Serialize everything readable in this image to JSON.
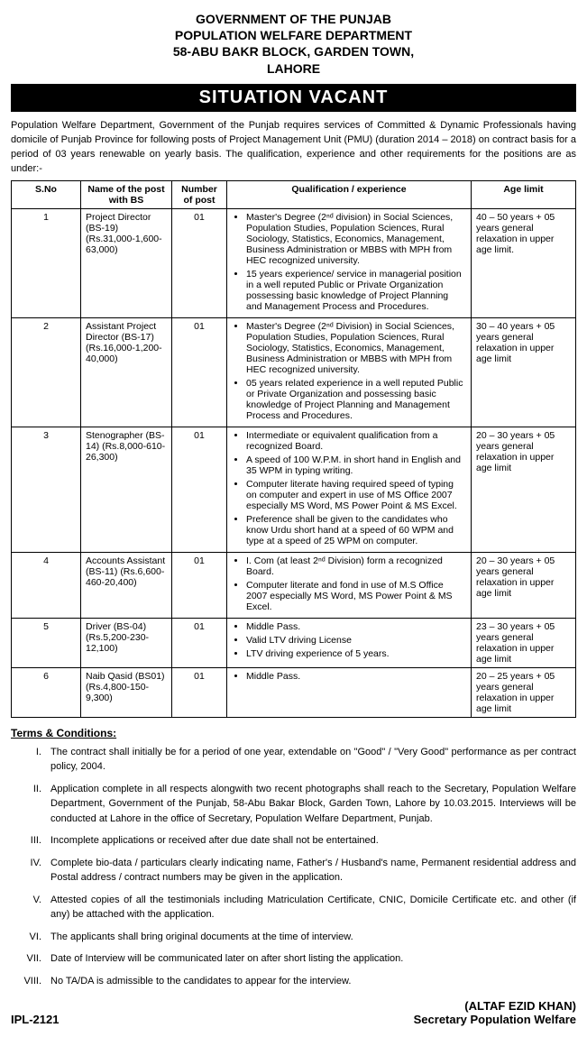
{
  "header": {
    "line1": "GOVERNMENT OF THE PUNJAB",
    "line2": "POPULATION WELFARE DEPARTMENT",
    "line3": "58-ABU BAKR BLOCK, GARDEN TOWN,",
    "line4": "LAHORE"
  },
  "banner": "SITUATION VACANT",
  "intro": "Population Welfare Department, Government of the Punjab requires services of Committed & Dynamic Professionals having domicile of Punjab Province for following posts of Project Management Unit (PMU) (duration 2014 – 2018) on contract basis for a period of 03 years renewable on yearly basis. The qualification, experience and other requirements for the positions are as under:-",
  "columns": {
    "sno": "S.No",
    "post": "Name of the post with BS",
    "num": "Number of post",
    "qual": "Qualification / experience",
    "age": "Age limit"
  },
  "rows": [
    {
      "sno": "1",
      "post": "Project Director (BS-19) (Rs.31,000-1,600-63,000)",
      "num": "01",
      "qual": [
        "Master's Degree (2ⁿᵈ division) in Social Sciences, Population Studies, Population Sciences, Rural Sociology, Statistics, Economics, Management, Business Administration or MBBS with MPH from HEC recognized university.",
        "15 years experience/ service in managerial position in a well reputed Public or Private Organization possessing basic knowledge of Project Planning and Management Process and Procedures."
      ],
      "age": "40 – 50 years + 05 years general relaxation in upper age limit."
    },
    {
      "sno": "2",
      "post": "Assistant Project Director (BS-17) (Rs.16,000-1,200-40,000)",
      "num": "01",
      "qual": [
        "Master's Degree (2ⁿᵈ Division) in Social Sciences, Population Studies, Population Sciences, Rural Sociology, Statistics, Economics, Management, Business Administration or MBBS with MPH from HEC recognized university.",
        "05 years related experience in a well reputed Public or Private Organization and possessing basic knowledge of Project Planning and Management Process and Procedures."
      ],
      "age": "30 – 40 years + 05 years general relaxation in upper age limit"
    },
    {
      "sno": "3",
      "post": "Stenographer (BS-14) (Rs.8,000-610-26,300)",
      "num": "01",
      "qual": [
        "Intermediate or equivalent qualification from a recognized Board.",
        "A speed of 100 W.P.M. in short hand in English and 35 WPM in typing writing.",
        "Computer literate having required speed of typing on computer and expert in use of MS Office 2007 especially MS Word, MS Power Point & MS Excel.",
        "Preference shall be given to the candidates who know Urdu short hand at a speed of 60 WPM and type at a speed of 25 WPM on computer."
      ],
      "age": "20 – 30 years + 05 years general relaxation in upper age limit"
    },
    {
      "sno": "4",
      "post": "Accounts Assistant (BS-11) (Rs.6,600-460-20,400)",
      "num": "01",
      "qual": [
        "I. Com (at least 2ⁿᵈ Division) form a recognized Board.",
        "Computer literate and fond in use of M.S Office 2007 especially MS Word, MS Power Point & MS Excel."
      ],
      "age": "20 – 30 years + 05 years general relaxation in upper age limit"
    },
    {
      "sno": "5",
      "post": "Driver (BS-04) (Rs.5,200-230-12,100)",
      "num": "01",
      "qual": [
        "Middle Pass.",
        "Valid LTV driving License",
        "LTV driving experience of 5 years."
      ],
      "age": "23 – 30 years + 05 years general relaxation in upper age limit"
    },
    {
      "sno": "6",
      "post": "Naib Qasid (BS01) (Rs.4,800-150-9,300)",
      "num": "01",
      "qual": [
        "Middle Pass."
      ],
      "age": "20 – 25 years + 05 years general relaxation in upper age limit"
    }
  ],
  "terms_heading": "Terms & Conditions:",
  "terms": [
    {
      "num": "I.",
      "text": "The contract shall initially be for a period of one year, extendable on \"Good\" / \"Very Good\" performance as per contract policy, 2004."
    },
    {
      "num": "II.",
      "text": "Application complete in all respects alongwith two recent photographs shall reach to the Secretary, Population Welfare Department, Government of the Punjab, 58-Abu Bakar Block, Garden Town, Lahore by 10.03.2015. Interviews will be conducted at Lahore in the office of Secretary, Population Welfare Department, Punjab."
    },
    {
      "num": "III.",
      "text": "Incomplete applications or received after due date shall not be entertained."
    },
    {
      "num": "IV.",
      "text": "Complete bio-data / particulars clearly indicating name, Father's / Husband's name, Permanent residential address and Postal address / contract numbers may be given in the application."
    },
    {
      "num": "V.",
      "text": "Attested copies of all the testimonials including Matriculation Certificate, CNIC, Domicile Certificate etc. and other (if any) be attached with the application."
    },
    {
      "num": "VI.",
      "text": "The applicants shall bring original documents at the time of interview."
    },
    {
      "num": "VII.",
      "text": "Date of Interview will be communicated later on after short listing the application."
    },
    {
      "num": "VIII.",
      "text": "No TA/DA is admissible to the candidates to appear for the interview."
    }
  ],
  "footer": {
    "ipl": "IPL-2121",
    "sig_name": "(ALTAF EZID KHAN)",
    "sig_title": "Secretary Population Welfare"
  }
}
